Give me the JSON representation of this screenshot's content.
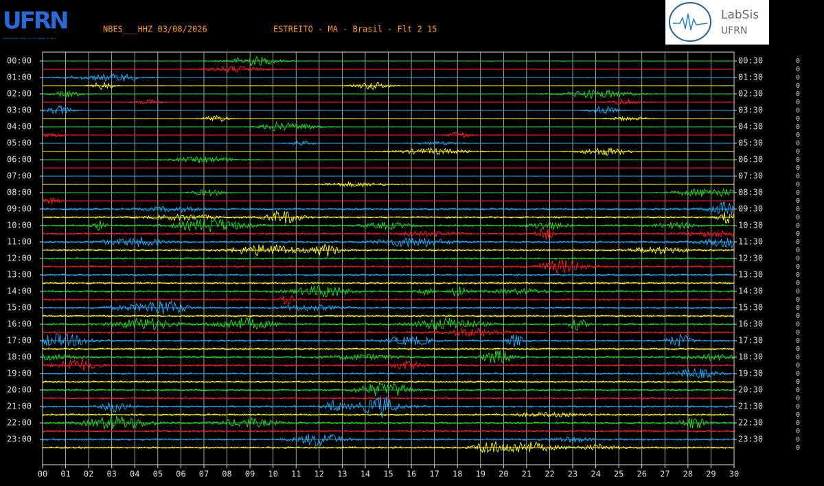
{
  "header": {
    "station": "NBES___HHZ 03/08/2026",
    "location": "ESTREITO - MA - Brasil - Flt 2 15",
    "left_logo": "UFRN",
    "left_logo_subtitle": "UNIVERSIDADE FEDERAL DO RIO GRANDE DO NORTE",
    "right_logo_title": "LabSis",
    "right_logo_subtitle": "UFRN"
  },
  "left_labels": [
    "00:00",
    "01:00",
    "02:00",
    "03:00",
    "04:00",
    "05:00",
    "06:00",
    "07:00",
    "08:00",
    "09:00",
    "10:00",
    "11:00",
    "12:00",
    "13:00",
    "14:00",
    "15:00",
    "16:00",
    "17:00",
    "18:00",
    "19:00",
    "20:00",
    "21:00",
    "22:00",
    "23:00"
  ],
  "right_labels": [
    "00:30",
    "01:30",
    "02:30",
    "03:30",
    "04:30",
    "05:30",
    "06:30",
    "07:30",
    "08:30",
    "09:30",
    "10:30",
    "11:30",
    "12:30",
    "13:30",
    "14:30",
    "15:30",
    "16:30",
    "17:30",
    "18:30",
    "19:30",
    "20:30",
    "21:30",
    "22:30",
    "23:30"
  ],
  "right_column": [
    "0",
    "0",
    "0",
    "0",
    "0",
    "0",
    "0",
    "0",
    "0",
    "0",
    "0",
    "0",
    "0",
    "0",
    "0",
    "0",
    "0",
    "0",
    "0",
    "0",
    "0",
    "0",
    "0",
    "0",
    "0",
    "0",
    "0",
    "0",
    "0",
    "0",
    "0",
    "0",
    "0",
    "0",
    "0",
    "0",
    "0",
    "0",
    "0",
    "0",
    "0",
    "0",
    "0",
    "0",
    "0",
    "0",
    "0",
    "0"
  ],
  "x_labels": [
    "00",
    "01",
    "02",
    "03",
    "04",
    "05",
    "06",
    "07",
    "08",
    "09",
    "10",
    "11",
    "12",
    "13",
    "14",
    "15",
    "16",
    "17",
    "18",
    "19",
    "20",
    "21",
    "22",
    "23",
    "24",
    "25",
    "26",
    "27",
    "28",
    "29",
    "30"
  ]
}
